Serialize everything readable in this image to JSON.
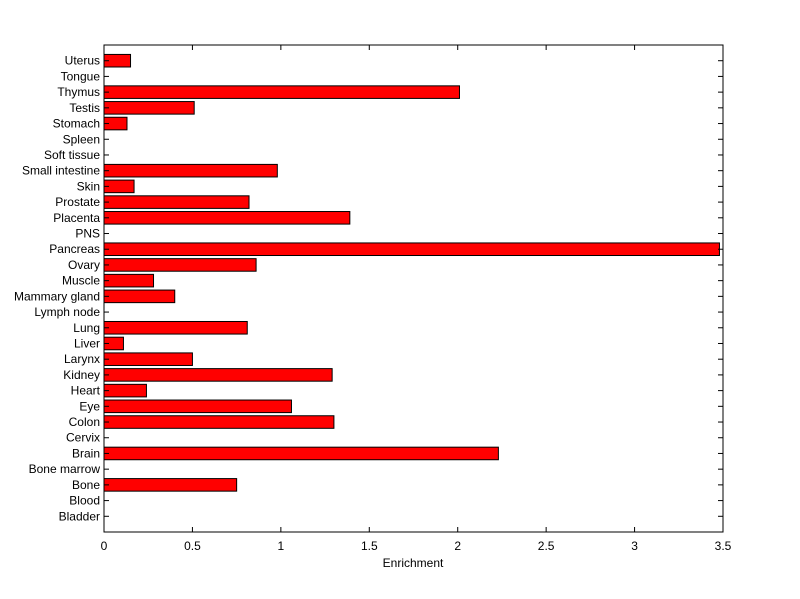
{
  "chart_data": {
    "type": "bar",
    "orientation": "horizontal",
    "title": "",
    "xlabel": "Enrichment",
    "ylabel": "",
    "xlim": [
      0,
      3.5
    ],
    "xticks": [
      "0",
      "0.5",
      "1",
      "1.5",
      "2",
      "2.5",
      "3",
      "3.5"
    ],
    "grid": false,
    "bar_color": "#ff0000",
    "categories": [
      "Bladder",
      "Blood",
      "Bone",
      "Bone marrow",
      "Brain",
      "Cervix",
      "Colon",
      "Eye",
      "Heart",
      "Kidney",
      "Larynx",
      "Liver",
      "Lung",
      "Lymph node",
      "Mammary gland",
      "Muscle",
      "Ovary",
      "Pancreas",
      "PNS",
      "Placenta",
      "Prostate",
      "Skin",
      "Small intestine",
      "Soft tissue",
      "Spleen",
      "Stomach",
      "Testis",
      "Thymus",
      "Tongue",
      "Uterus"
    ],
    "values": [
      0,
      0,
      0.75,
      0,
      2.23,
      0,
      1.3,
      1.06,
      0.24,
      1.29,
      0.5,
      0.11,
      0.81,
      0,
      0.4,
      0.28,
      0.86,
      3.48,
      0,
      1.39,
      0.82,
      0.17,
      0.98,
      0,
      0,
      0.13,
      0.51,
      2.01,
      0,
      0.15
    ]
  }
}
